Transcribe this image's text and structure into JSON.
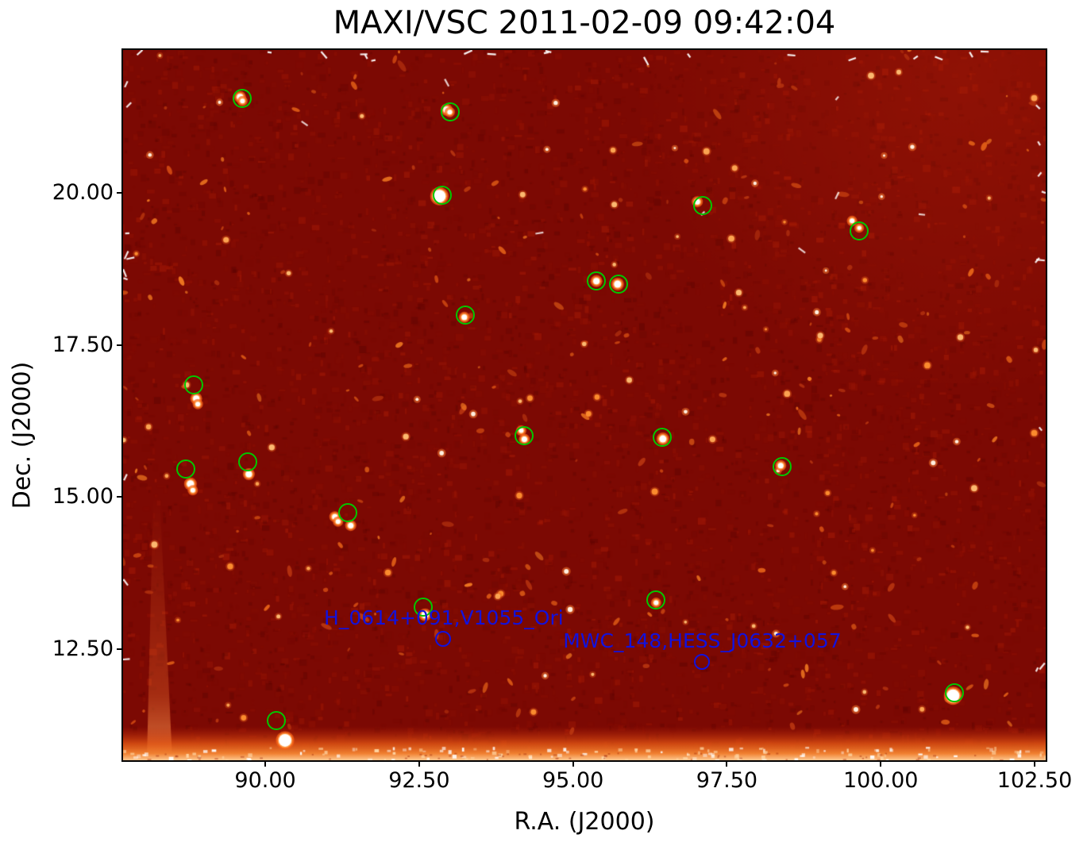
{
  "chart_data": {
    "type": "heatmap",
    "title": "MAXI/VSC 2011-02-09 09:42:04",
    "xlabel": "R.A. (J2000)",
    "ylabel": "Dec. (J2000)",
    "x_axis": {
      "min": 87.69,
      "max": 102.68,
      "ticks": [
        {
          "value": 90.0,
          "label": "90.00"
        },
        {
          "value": 92.5,
          "label": "92.50"
        },
        {
          "value": 95.0,
          "label": "95.00"
        },
        {
          "value": 97.5,
          "label": "97.50"
        },
        {
          "value": 100.0,
          "label": "100.00"
        },
        {
          "value": 102.5,
          "label": "102.50"
        }
      ]
    },
    "y_axis": {
      "min": 10.67,
      "max": 22.35,
      "ticks": [
        {
          "value": 20.0,
          "label": "20.00"
        },
        {
          "value": 17.5,
          "label": "17.50"
        },
        {
          "value": 15.0,
          "label": "15.00"
        },
        {
          "value": 12.5,
          "label": "12.50"
        }
      ]
    },
    "colors": {
      "figure_bg": "#ffffff",
      "image_base": "#7c0903",
      "source_circle_green": "#00c800",
      "annotation_blue": "#1212dd",
      "axis_text": "#000000"
    },
    "legend": "green circles = detected X-ray sources; blue circles = catalog positions",
    "sources": [
      {
        "ra": 89.63,
        "dec": 21.55,
        "spots": [
          [
            -3,
            -2,
            4
          ],
          [
            0,
            3,
            3
          ]
        ]
      },
      {
        "ra": 93.01,
        "dec": 21.33,
        "spots": [
          [
            -5,
            -3,
            4
          ],
          [
            -1,
            0,
            3
          ]
        ]
      },
      {
        "ra": 92.88,
        "dec": 19.96,
        "spots": [
          [
            -4,
            1,
            8
          ]
        ]
      },
      {
        "ra": 97.11,
        "dec": 19.79,
        "spots": [
          [
            -7,
            -5,
            3.5
          ]
        ]
      },
      {
        "ra": 99.65,
        "dec": 19.37,
        "spots": [
          [
            -9,
            -13,
            3
          ],
          [
            0,
            -4,
            2.5
          ]
        ]
      },
      {
        "ra": 95.38,
        "dec": 18.55,
        "spots": [
          [
            0,
            0,
            4
          ]
        ]
      },
      {
        "ra": 95.75,
        "dec": 18.5,
        "spots": [
          [
            -2,
            0,
            4.5
          ]
        ]
      },
      {
        "ra": 93.26,
        "dec": 17.98,
        "spots": [
          [
            -2,
            2,
            3.5
          ]
        ]
      },
      {
        "ra": 88.84,
        "dec": 16.84,
        "spots": [
          [
            3,
            17,
            4
          ],
          [
            5,
            24,
            3
          ]
        ]
      },
      {
        "ra": 88.72,
        "dec": 15.45,
        "spots": [
          [
            5,
            18,
            4.5
          ],
          [
            8,
            26,
            3
          ]
        ]
      },
      {
        "ra": 89.72,
        "dec": 15.57,
        "spots": [
          [
            1,
            15,
            4
          ]
        ]
      },
      {
        "ra": 94.21,
        "dec": 16.0,
        "spots": [
          [
            -4,
            -7,
            3
          ],
          [
            0,
            4,
            3.5
          ]
        ]
      },
      {
        "ra": 96.46,
        "dec": 15.98,
        "spots": [
          [
            0,
            2,
            4.5
          ]
        ]
      },
      {
        "ra": 98.4,
        "dec": 15.49,
        "spots": [
          [
            -2,
            -2,
            3.5
          ]
        ]
      },
      {
        "ra": 91.35,
        "dec": 14.74,
        "spots": [
          [
            -17,
            5,
            3.5
          ],
          [
            -13,
            11,
            3
          ],
          [
            3,
            16,
            3.5
          ]
        ]
      },
      {
        "ra": 92.57,
        "dec": 13.18,
        "spots": [
          [
            2,
            9,
            4.5
          ]
        ]
      },
      {
        "ra": 96.35,
        "dec": 13.3,
        "spots": [
          [
            0,
            3,
            3
          ]
        ]
      },
      {
        "ra": 101.2,
        "dec": 11.77,
        "spots": [
          [
            -2,
            3,
            8
          ]
        ]
      },
      {
        "ra": 90.18,
        "dec": 11.31,
        "spots": [
          [
            11,
            24,
            8
          ]
        ]
      }
    ],
    "annotations": [
      {
        "label": "H_0614+091,V1055_Ori",
        "ra": 92.9,
        "dec": 12.66
      },
      {
        "label": "MWC_148,HESS_J0632+057",
        "ra": 97.1,
        "dec": 12.28
      }
    ]
  }
}
